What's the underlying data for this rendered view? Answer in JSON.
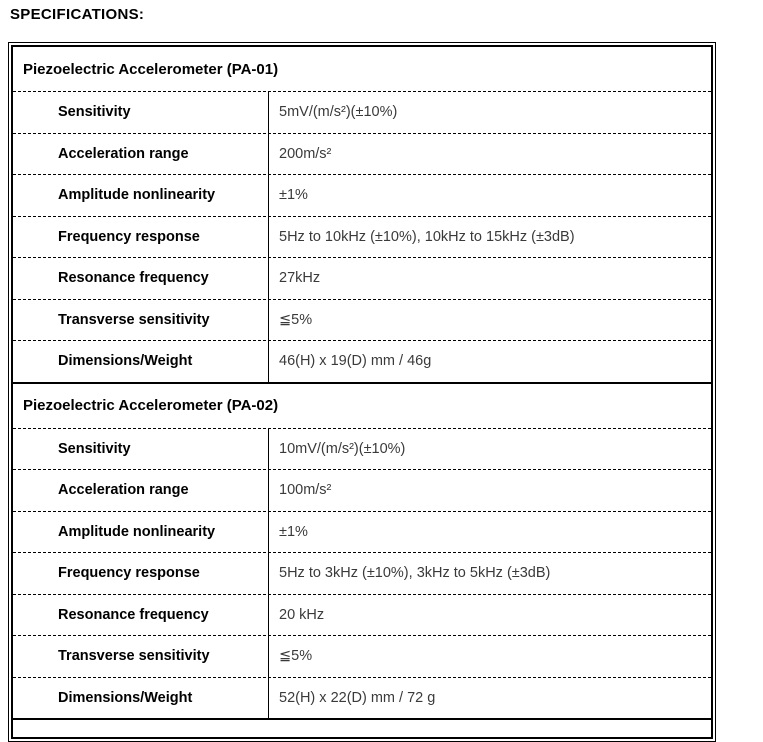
{
  "page": {
    "title": "SPECIFICATIONS:"
  },
  "colors": {
    "border": "#000000",
    "label_text": "#000000",
    "value_text": "#3a3a3a",
    "background": "#ffffff"
  },
  "table": {
    "sections": [
      {
        "header": "Piezoelectric Accelerometer (PA-01)",
        "rows": [
          {
            "label": "Sensitivity",
            "value": "5mV/(m/s²)(±10%)"
          },
          {
            "label": "Acceleration range",
            "value": "200m/s²"
          },
          {
            "label": "Amplitude nonlinearity",
            "value": "±1%"
          },
          {
            "label": "Frequency response",
            "value": "5Hz to 10kHz (±10%), 10kHz to 15kHz (±3dB)"
          },
          {
            "label": "Resonance frequency",
            "value": "27kHz"
          },
          {
            "label": "Transverse sensitivity",
            "value": "≦5%"
          },
          {
            "label": "Dimensions/Weight",
            "value": "46(H) x 19(D) mm / 46g"
          }
        ]
      },
      {
        "header": "Piezoelectric Accelerometer (PA-02)",
        "rows": [
          {
            "label": "Sensitivity",
            "value": "10mV/(m/s²)(±10%)"
          },
          {
            "label": "Acceleration range",
            "value": "100m/s²"
          },
          {
            "label": "Amplitude nonlinearity",
            "value": "±1%"
          },
          {
            "label": "Frequency response",
            "value": "5Hz to 3kHz (±10%), 3kHz to 5kHz (±3dB)"
          },
          {
            "label": "Resonance frequency",
            "value": "20 kHz"
          },
          {
            "label": "Transverse sensitivity",
            "value": "≦5%"
          },
          {
            "label": "Dimensions/Weight",
            "value": "52(H) x 22(D) mm / 72 g"
          }
        ]
      }
    ]
  }
}
